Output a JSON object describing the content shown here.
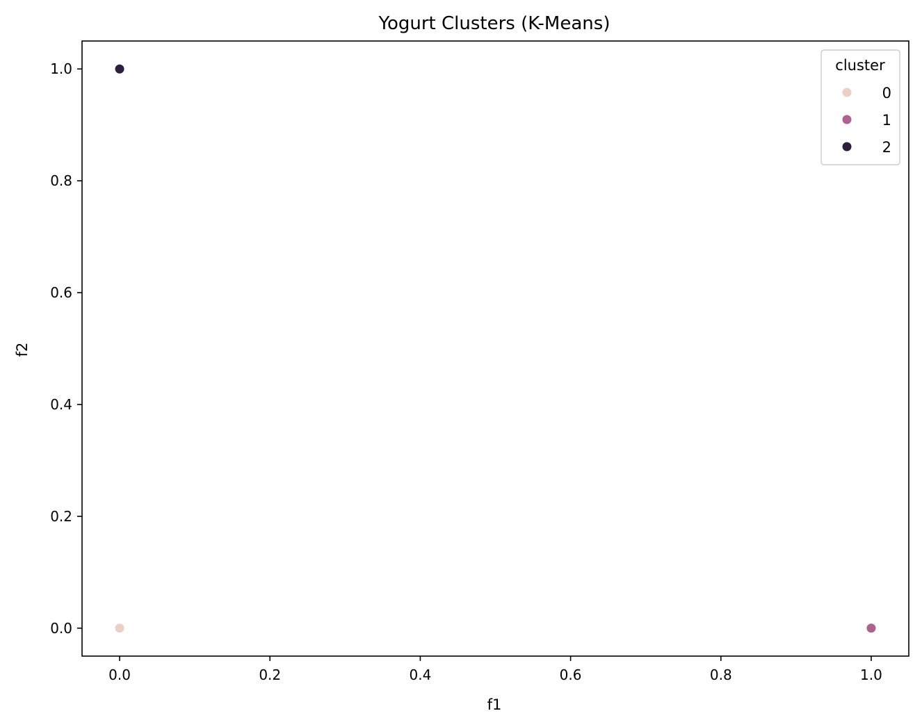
{
  "chart_data": {
    "type": "scatter",
    "title": "Yogurt Clusters (K-Means)",
    "xlabel": "f1",
    "ylabel": "f2",
    "xlim": [
      -0.05,
      1.05
    ],
    "ylim": [
      -0.05,
      1.05
    ],
    "xticks": [
      0.0,
      0.2,
      0.4,
      0.6,
      0.8,
      1.0
    ],
    "yticks": [
      0.0,
      0.2,
      0.4,
      0.6,
      0.8,
      1.0
    ],
    "xtick_labels": [
      "0.0",
      "0.2",
      "0.4",
      "0.6",
      "0.8",
      "1.0"
    ],
    "ytick_labels": [
      "0.0",
      "0.2",
      "0.4",
      "0.6",
      "0.8",
      "1.0"
    ],
    "grid": false,
    "legend": {
      "title": "cluster",
      "placement": "top-right",
      "entries": [
        {
          "label": "0",
          "color": "#ebd0c7"
        },
        {
          "label": "1",
          "color": "#ad6290"
        },
        {
          "label": "2",
          "color": "#2d1e3e"
        }
      ]
    },
    "points": [
      {
        "x": 0.0,
        "y": 0.0,
        "cluster": "0",
        "color": "#ebd0c7"
      },
      {
        "x": 1.0,
        "y": 0.0,
        "cluster": "1",
        "color": "#ad6290"
      },
      {
        "x": 0.0,
        "y": 1.0,
        "cluster": "2",
        "color": "#2d1e3e"
      }
    ]
  }
}
